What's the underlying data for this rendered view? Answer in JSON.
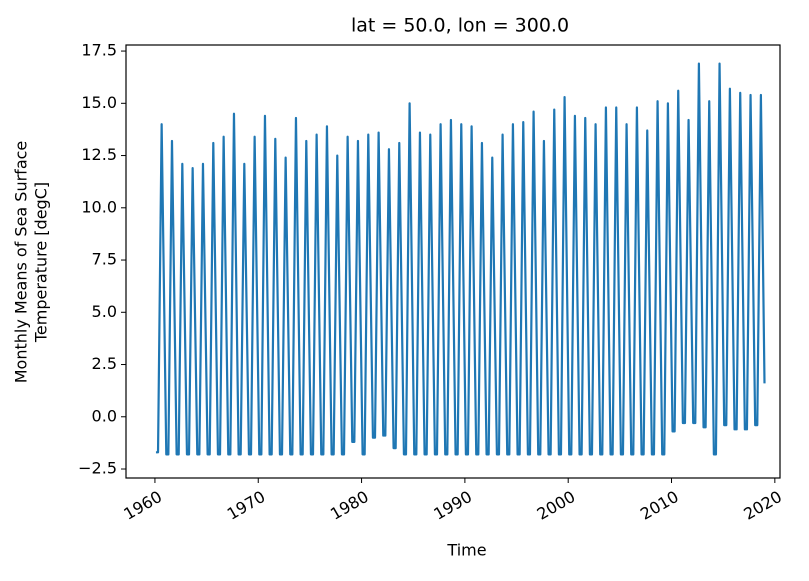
{
  "chart_data": {
    "type": "line",
    "title": "lat = 50.0, lon = 300.0",
    "xlabel": "Time",
    "ylabel": [
      "Monthly Means of Sea Surface",
      "Temperature [degC]"
    ],
    "xlim": [
      1957.2,
      2020.5
    ],
    "ylim": [
      -2.93,
      17.79
    ],
    "xticks": [
      1960,
      1970,
      1980,
      1990,
      2000,
      2010,
      2020
    ],
    "yticks": [
      {
        "value": -2.5,
        "label": "−2.5"
      },
      {
        "value": 0,
        "label": "0.0"
      },
      2.5,
      {
        "value": 5,
        "label": "5.0"
      },
      7.5,
      {
        "value": 10,
        "label": "10.0"
      },
      12.5,
      {
        "value": 15,
        "label": "15.0"
      },
      17.5
    ],
    "series": [
      {
        "color": "#1f77b4",
        "x": [
          1960.1,
          1960.3,
          1960.65,
          1961.1,
          1961.3,
          1961.65,
          1962.1,
          1962.3,
          1962.65,
          1963.1,
          1963.3,
          1963.65,
          1964.1,
          1964.3,
          1964.65,
          1965.1,
          1965.3,
          1965.65,
          1966.1,
          1966.3,
          1966.65,
          1967.1,
          1967.3,
          1967.65,
          1968.1,
          1968.3,
          1968.65,
          1969.1,
          1969.3,
          1969.65,
          1970.1,
          1970.3,
          1970.65,
          1971.1,
          1971.3,
          1971.65,
          1972.1,
          1972.3,
          1972.65,
          1973.1,
          1973.3,
          1973.65,
          1974.1,
          1974.3,
          1974.65,
          1975.1,
          1975.3,
          1975.65,
          1976.1,
          1976.3,
          1976.65,
          1977.1,
          1977.3,
          1977.65,
          1978.1,
          1978.3,
          1978.65,
          1979.1,
          1979.3,
          1979.65,
          1980.1,
          1980.3,
          1980.65,
          1981.1,
          1981.3,
          1981.65,
          1982.1,
          1982.3,
          1982.65,
          1983.1,
          1983.3,
          1983.65,
          1984.1,
          1984.3,
          1984.65,
          1985.1,
          1985.3,
          1985.65,
          1986.1,
          1986.3,
          1986.65,
          1987.1,
          1987.3,
          1987.65,
          1988.1,
          1988.3,
          1988.65,
          1989.1,
          1989.3,
          1989.65,
          1990.1,
          1990.3,
          1990.65,
          1991.1,
          1991.3,
          1991.65,
          1992.1,
          1992.3,
          1992.65,
          1993.1,
          1993.3,
          1993.65,
          1994.1,
          1994.3,
          1994.65,
          1995.1,
          1995.3,
          1995.65,
          1996.1,
          1996.3,
          1996.65,
          1997.1,
          1997.3,
          1997.65,
          1998.1,
          1998.3,
          1998.65,
          1999.1,
          1999.3,
          1999.65,
          2000.1,
          2000.3,
          2000.65,
          2001.1,
          2001.3,
          2001.65,
          2002.1,
          2002.3,
          2002.65,
          2003.1,
          2003.3,
          2003.65,
          2004.1,
          2004.3,
          2004.65,
          2005.1,
          2005.3,
          2005.65,
          2006.1,
          2006.3,
          2006.65,
          2007.1,
          2007.3,
          2007.65,
          2008.1,
          2008.3,
          2008.65,
          2009.1,
          2009.3,
          2009.65,
          2010.1,
          2010.3,
          2010.65,
          2011.1,
          2011.3,
          2011.65,
          2012.1,
          2012.3,
          2012.65,
          2013.1,
          2013.3,
          2013.65,
          2014.1,
          2014.3,
          2014.65,
          2015.1,
          2015.3,
          2015.65,
          2016.1,
          2016.3,
          2016.65,
          2017.1,
          2017.3,
          2017.65,
          2018.1,
          2018.3,
          2018.65,
          2019.0
        ],
        "values": [
          -1.7,
          -1.7,
          14.0,
          -1.8,
          -1.8,
          13.2,
          -1.8,
          -1.8,
          12.1,
          -1.8,
          -1.8,
          11.9,
          -1.8,
          -1.8,
          12.1,
          -1.8,
          -1.8,
          13.1,
          -1.8,
          -1.8,
          13.4,
          -1.8,
          -1.8,
          14.5,
          -1.8,
          -1.8,
          12.1,
          -1.8,
          -1.8,
          13.4,
          -1.8,
          -1.8,
          14.4,
          -1.8,
          -1.8,
          13.3,
          -1.8,
          -1.8,
          12.4,
          -1.8,
          -1.8,
          14.3,
          -1.8,
          -1.8,
          13.2,
          -1.8,
          -1.8,
          13.5,
          -1.8,
          -1.8,
          13.9,
          -1.8,
          -1.8,
          12.5,
          -1.8,
          -1.8,
          13.4,
          -1.2,
          -1.2,
          13.2,
          -1.8,
          -1.8,
          13.5,
          -1.0,
          -1.0,
          13.6,
          -0.9,
          -0.9,
          12.8,
          -1.5,
          -1.5,
          13.1,
          -1.8,
          -1.8,
          15.0,
          -1.8,
          -1.8,
          13.6,
          -1.8,
          -1.8,
          13.5,
          -1.8,
          -1.8,
          14.0,
          -1.8,
          -1.8,
          14.2,
          -1.8,
          -1.8,
          14.0,
          -1.8,
          -1.8,
          13.9,
          -1.8,
          -1.8,
          13.1,
          -1.8,
          -1.8,
          12.4,
          -1.8,
          -1.8,
          13.5,
          -1.8,
          -1.8,
          14.0,
          -1.8,
          -1.8,
          14.1,
          -1.8,
          -1.8,
          14.6,
          -1.8,
          -1.8,
          13.2,
          -1.8,
          -1.8,
          14.7,
          -1.8,
          -1.8,
          15.3,
          -1.8,
          -1.8,
          14.4,
          -1.8,
          -1.8,
          14.3,
          -1.8,
          -1.8,
          14.0,
          -1.8,
          -1.8,
          14.8,
          -1.8,
          -1.8,
          14.8,
          -1.8,
          -1.8,
          14.0,
          -1.8,
          -1.8,
          14.8,
          -1.8,
          -1.8,
          13.7,
          -1.8,
          -1.8,
          15.1,
          -1.8,
          -1.8,
          15.0,
          -0.7,
          -0.7,
          15.6,
          -0.3,
          -0.3,
          14.2,
          -0.3,
          -0.3,
          16.9,
          -0.5,
          -0.5,
          15.1,
          -1.8,
          -1.8,
          16.9,
          -0.4,
          -0.4,
          15.7,
          -0.6,
          -0.6,
          15.5,
          -0.6,
          -0.6,
          15.4,
          -0.4,
          -0.4,
          15.4,
          1.6
        ]
      }
    ]
  }
}
